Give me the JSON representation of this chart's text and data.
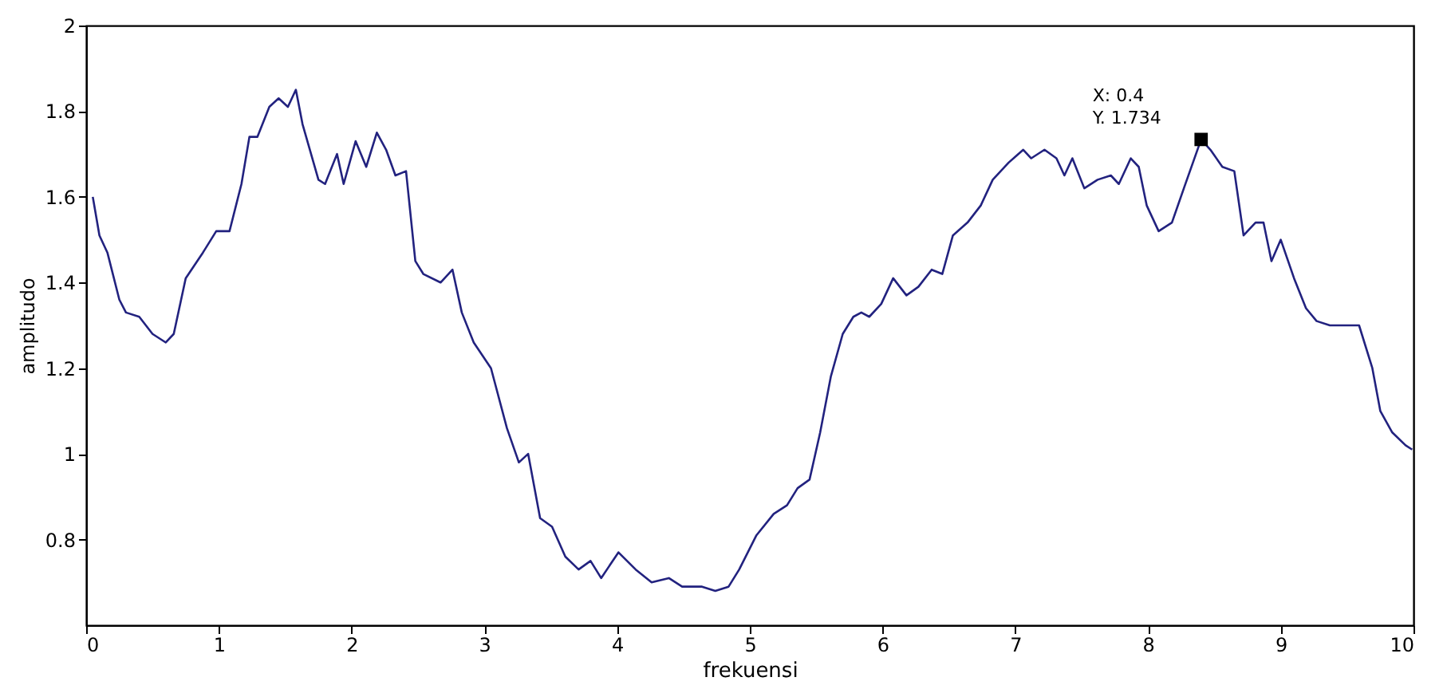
{
  "chart_data": {
    "type": "line",
    "xlabel": "frekuensi",
    "ylabel": "amplitudo",
    "xlim": [
      0,
      10
    ],
    "xticks": [
      0,
      1,
      2,
      3,
      4,
      5,
      6,
      7,
      8,
      9,
      10
    ],
    "ylim": [
      0.6,
      2
    ],
    "yticks": [
      0.8,
      1,
      1.2,
      1.4,
      1.6,
      1.8,
      2
    ],
    "grid": false,
    "marker": "none",
    "line_style": "solid",
    "annotations": [
      {
        "text": "X: 0.4\nY. 1.734",
        "x": 8.4,
        "y": 1.734
      }
    ],
    "series": [
      {
        "color": "#22227f",
        "x": [
          0.05,
          0.1,
          0.16,
          0.25,
          0.3,
          0.4,
          0.5,
          0.6,
          0.66,
          0.75,
          0.88,
          0.98,
          1.08,
          1.17,
          1.23,
          1.29,
          1.38,
          1.45,
          1.52,
          1.58,
          1.63,
          1.75,
          1.8,
          1.89,
          1.94,
          2.03,
          2.11,
          2.19,
          2.26,
          2.33,
          2.41,
          2.48,
          2.54,
          2.67,
          2.76,
          2.83,
          2.92,
          3.05,
          3.17,
          3.26,
          3.33,
          3.42,
          3.51,
          3.61,
          3.71,
          3.8,
          3.88,
          4.01,
          4.14,
          4.26,
          4.39,
          4.49,
          4.64,
          4.74,
          4.84,
          4.92,
          5.05,
          5.18,
          5.28,
          5.36,
          5.45,
          5.53,
          5.61,
          5.7,
          5.78,
          5.84,
          5.9,
          5.99,
          6.08,
          6.18,
          6.27,
          6.37,
          6.45,
          6.53,
          6.64,
          6.74,
          6.83,
          6.95,
          7.06,
          7.12,
          7.22,
          7.31,
          7.37,
          7.43,
          7.52,
          7.62,
          7.72,
          7.78,
          7.87,
          7.93,
          7.99,
          8.08,
          8.18,
          8.27,
          8.4,
          8.47,
          8.56,
          8.65,
          8.72,
          8.81,
          8.87,
          8.93,
          9.0,
          9.1,
          9.19,
          9.27,
          9.37,
          9.47,
          9.59,
          9.69,
          9.75,
          9.84,
          9.94,
          9.99
        ],
        "values": [
          1.6,
          1.51,
          1.47,
          1.36,
          1.33,
          1.32,
          1.28,
          1.26,
          1.28,
          1.41,
          1.47,
          1.52,
          1.52,
          1.63,
          1.74,
          1.74,
          1.81,
          1.83,
          1.81,
          1.85,
          1.77,
          1.64,
          1.63,
          1.7,
          1.63,
          1.73,
          1.67,
          1.75,
          1.71,
          1.65,
          1.66,
          1.45,
          1.42,
          1.4,
          1.43,
          1.33,
          1.26,
          1.2,
          1.06,
          0.98,
          1.0,
          0.85,
          0.83,
          0.76,
          0.73,
          0.75,
          0.71,
          0.77,
          0.73,
          0.7,
          0.71,
          0.69,
          0.69,
          0.68,
          0.69,
          0.73,
          0.81,
          0.86,
          0.88,
          0.92,
          0.94,
          1.05,
          1.18,
          1.28,
          1.32,
          1.33,
          1.32,
          1.35,
          1.41,
          1.37,
          1.39,
          1.43,
          1.42,
          1.51,
          1.54,
          1.58,
          1.64,
          1.68,
          1.71,
          1.69,
          1.71,
          1.69,
          1.65,
          1.69,
          1.62,
          1.64,
          1.65,
          1.63,
          1.69,
          1.67,
          1.58,
          1.52,
          1.54,
          1.62,
          1.734,
          1.71,
          1.67,
          1.66,
          1.51,
          1.54,
          1.54,
          1.45,
          1.5,
          1.41,
          1.34,
          1.31,
          1.3,
          1.3,
          1.3,
          1.2,
          1.1,
          1.05,
          1.02,
          1.01
        ]
      }
    ]
  }
}
